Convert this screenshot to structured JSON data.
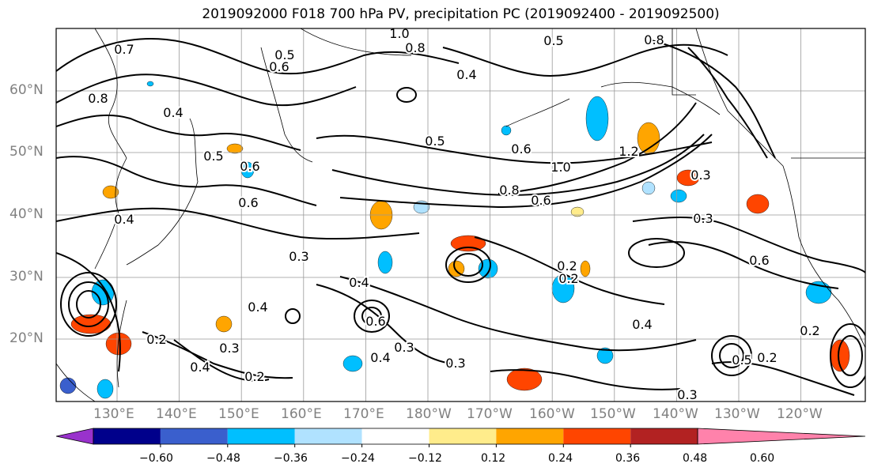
{
  "title": "2019092000 F018 700 hPa PV, precipitation PC (2019092400 - 2019092500)",
  "lat_labels": [
    "60°N",
    "50°N",
    "40°N",
    "30°N",
    "20°N"
  ],
  "lon_labels": [
    "130°E",
    "140°E",
    "150°E",
    "160°E",
    "170°E",
    "180°W",
    "170°W",
    "160°W",
    "150°W",
    "140°W",
    "130°W",
    "120°W"
  ],
  "colorbar": {
    "ticks": [
      "−0.60",
      "−0.48",
      "−0.36",
      "−0.24",
      "−0.12",
      "0.12",
      "0.24",
      "0.36",
      "0.48",
      "0.60"
    ],
    "colors": [
      "#9932cc",
      "#00008b",
      "#3a5fcd",
      "#00bfff",
      "#b0e2ff",
      "#ffffff",
      "#ffec8b",
      "#ffa500",
      "#ff4500",
      "#b22222",
      "#ff82ab"
    ]
  },
  "contour_labels": [
    "0.7",
    "1.0",
    "0.8",
    "0.5",
    "0.6",
    "0.8",
    "0.5",
    "0.4",
    "0.8",
    "0.4",
    "0.5",
    "0.6",
    "1.0",
    "1.2",
    "0.5",
    "0.6",
    "0.8",
    "0.6",
    "0.6",
    "0.3",
    "0.4",
    "0.3",
    "0.3",
    "0.6",
    "0.4",
    "0.4",
    "0.6",
    "0.3",
    "0.4",
    "0.3",
    "0.2",
    "0.2",
    "0.4",
    "0.2",
    "0.3",
    "0.4",
    "0.2",
    "0.5",
    "0.2",
    "0.2",
    "0.3"
  ]
}
